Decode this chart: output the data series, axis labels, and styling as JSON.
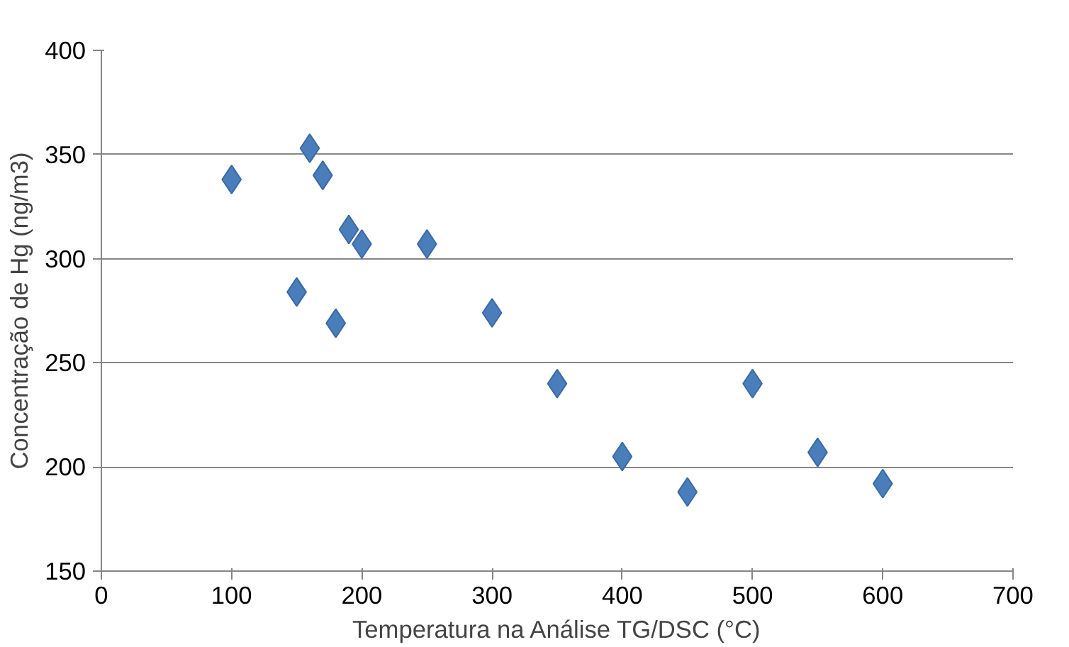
{
  "chart_data": {
    "type": "scatter",
    "xlabel": "Temperatura na Análise TG/DSC (°C)",
    "ylabel": "Concentração de Hg (ng/m3)",
    "x": [
      100,
      150,
      160,
      170,
      180,
      190,
      200,
      250,
      300,
      350,
      400,
      450,
      500,
      550,
      600
    ],
    "values": [
      338,
      284,
      353,
      340,
      269,
      314,
      307,
      307,
      274,
      240,
      205,
      188,
      240,
      207,
      192
    ],
    "color": "#4a7ebb",
    "marker": "diamond",
    "xlim": [
      0,
      700
    ],
    "ylim": [
      150,
      400
    ],
    "xticks": [
      0,
      100,
      200,
      300,
      400,
      500,
      600,
      700
    ],
    "yticks": [
      150,
      200,
      250,
      300,
      350,
      400
    ],
    "grid": "y"
  }
}
